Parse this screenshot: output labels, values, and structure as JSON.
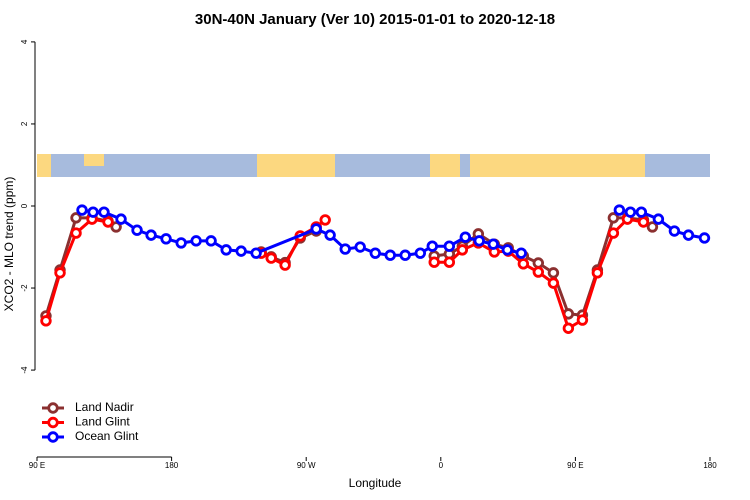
{
  "chart_data": {
    "type": "line",
    "title": "30N-40N January (Ver 10)   2015-01-01 to 2020-12-18",
    "x_label": "Longitude",
    "y_label": "XCO2 - MLO trend (ppm)",
    "xlim": [
      90,
      540
    ],
    "ylim": [
      -6.07,
      4.29
    ],
    "xticks": [
      {
        "value": 90,
        "label": "90 E"
      },
      180,
      {
        "value": 270,
        "label": "90 W"
      },
      {
        "value": 360,
        "label": "0"
      },
      {
        "value": 450,
        "label": "90 E"
      },
      180
    ],
    "yticks": [
      4,
      2,
      0,
      -2,
      -4
    ],
    "legend": "bottom-left",
    "series": [
      {
        "name": "Land Nadir",
        "color": "#8b3030",
        "x": [
          96,
          105.4,
          116.1,
          126.8,
          137.5,
          142.9,
          null,
          239.9,
          246.6,
          255.9,
          266,
          276.7,
          null,
          355.6,
          365.7,
          374.4,
          385.1,
          395.8,
          405.1,
          415.2,
          425.2,
          435.3,
          445.3,
          454.7,
          464.7,
          475.4,
          484.8,
          495.5,
          501.5
        ],
        "values": [
          -2.68,
          -1.56,
          -0.29,
          -0.29,
          -0.37,
          -0.51,
          null,
          -1.12,
          -1.24,
          -1.38,
          -0.78,
          -0.61,
          null,
          -1.22,
          -1.17,
          -0.98,
          -0.68,
          -0.93,
          -1.02,
          -1.22,
          -1.39,
          -1.63,
          -2.63,
          -2.66,
          -1.56,
          -0.29,
          -0.29,
          -0.34,
          -0.51
        ]
      },
      {
        "name": "Land Glint",
        "color": "#ff0000",
        "x": [
          96,
          105.4,
          116.1,
          126.8,
          137.5,
          null,
          239.9,
          246.6,
          255.9,
          266,
          276.7,
          282.7,
          null,
          355.6,
          365.7,
          374.4,
          385.1,
          395.8,
          405.1,
          415.2,
          425.2,
          435.3,
          445.3,
          454.7,
          464.7,
          475.4,
          484.8,
          495.5
        ],
        "values": [
          -2.8,
          -1.63,
          -0.66,
          -0.32,
          -0.39,
          null,
          -1.15,
          -1.27,
          -1.44,
          -0.73,
          -0.51,
          -0.34,
          null,
          -1.37,
          -1.37,
          -1.07,
          -0.9,
          -1.12,
          -1.1,
          -1.41,
          -1.61,
          -1.88,
          -2.98,
          -2.78,
          -1.63,
          -0.66,
          -0.32,
          -0.39
        ]
      },
      {
        "name": "Ocean Glint",
        "color": "#0000ff",
        "x": [
          120.1,
          127.5,
          134.8,
          146.2,
          156.9,
          166.3,
          176.3,
          186.4,
          196.4,
          206.4,
          216.5,
          226.5,
          236.5,
          276.7,
          286,
          296.1,
          306.1,
          316.2,
          326.2,
          336.2,
          346.3,
          354.3,
          365.7,
          376.4,
          385.7,
          395.1,
          404.5,
          413.8,
          null,
          479.4,
          486.8,
          494.1,
          505.5,
          516.2,
          525.6,
          536.3
        ],
        "values": [
          -0.1,
          -0.15,
          -0.15,
          -0.32,
          -0.59,
          -0.71,
          -0.8,
          -0.9,
          -0.85,
          -0.85,
          -1.07,
          -1.1,
          -1.15,
          -0.56,
          -0.71,
          -1.05,
          -1.0,
          -1.15,
          -1.2,
          -1.2,
          -1.15,
          -0.98,
          -0.98,
          -0.76,
          -0.85,
          -0.93,
          -1.07,
          -1.15,
          null,
          -0.1,
          -0.15,
          -0.15,
          -0.32,
          -0.61,
          -0.71,
          -0.78
        ]
      }
    ]
  }
}
